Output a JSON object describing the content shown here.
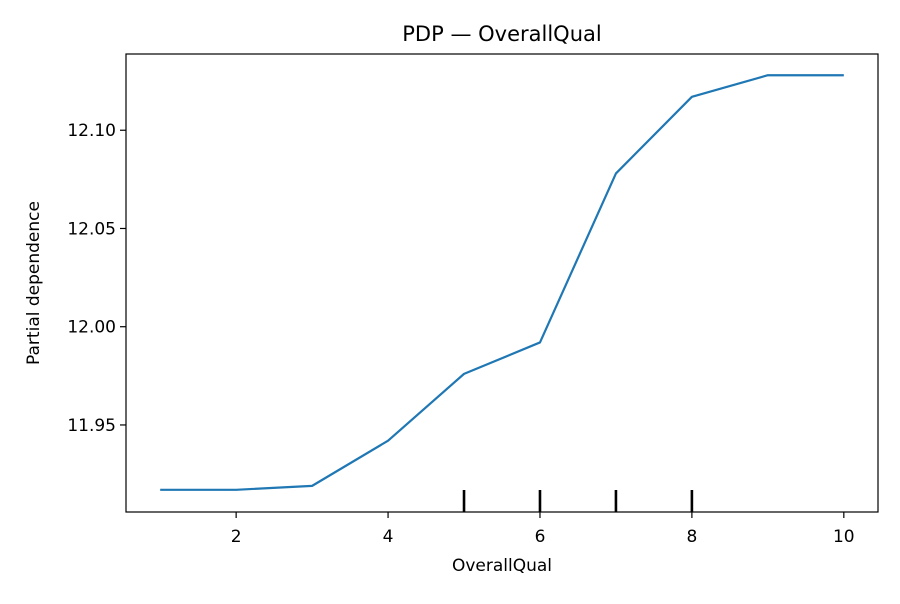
{
  "chart_data": {
    "type": "line",
    "title": "PDP — OverallQual",
    "xlabel": "OverallQual",
    "ylabel": "Partial dependence",
    "xlim": [
      0.55,
      10.45
    ],
    "ylim": [
      11.9057,
      12.1388
    ],
    "x_ticks": [
      2,
      4,
      6,
      8,
      10
    ],
    "x_tick_labels": [
      "2",
      "4",
      "6",
      "8",
      "10"
    ],
    "y_ticks": [
      11.95,
      12.0,
      12.05,
      12.1
    ],
    "y_tick_labels": [
      "11.95",
      "12.00",
      "12.05",
      "12.10"
    ],
    "grid": false,
    "legend": "none",
    "series": [
      {
        "color": "#1f77b4",
        "x": [
          1,
          2,
          3,
          4,
          5,
          6,
          7,
          8,
          9,
          10
        ],
        "values": [
          11.917,
          11.917,
          11.919,
          11.942,
          11.976,
          11.992,
          12.078,
          12.117,
          12.128,
          12.128
        ]
      }
    ],
    "rug": {
      "color": "#000000",
      "x": [
        5,
        6,
        7,
        8
      ]
    }
  }
}
